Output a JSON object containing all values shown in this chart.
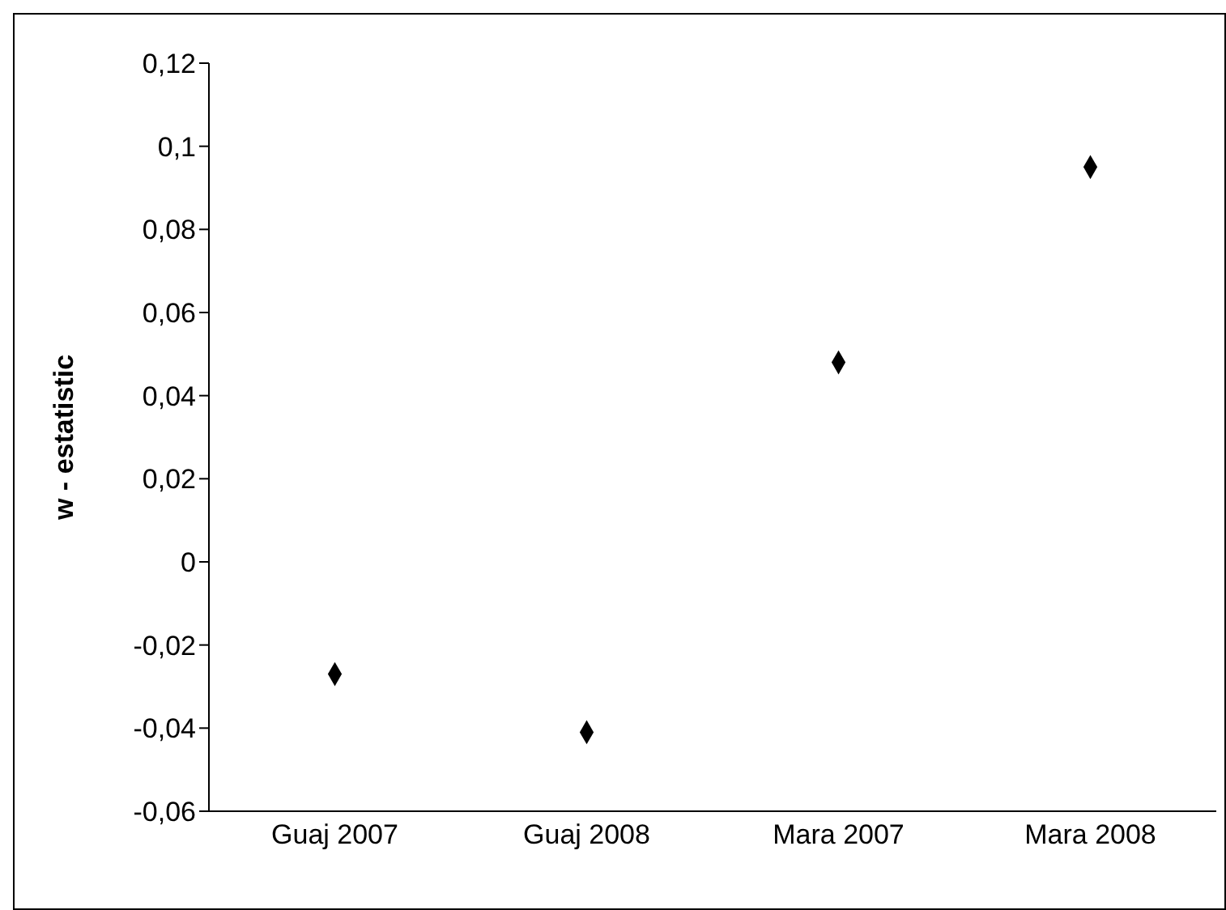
{
  "chart_data": {
    "type": "scatter",
    "ylabel": "w - estatistic",
    "categories": [
      "Guaj 2007",
      "Guaj 2008",
      "Mara 2007",
      "Mara 2008"
    ],
    "series": [
      {
        "color": "#000000",
        "values": [
          -0.027,
          -0.041,
          0.048,
          0.095
        ]
      }
    ],
    "ylim": [
      -0.06,
      0.12
    ],
    "yticks": [
      {
        "value": -0.06,
        "label": "-0,06"
      },
      {
        "value": -0.04,
        "label": "-0,04"
      },
      {
        "value": -0.02,
        "label": "-0,02"
      },
      {
        "value": 0,
        "label": "0"
      },
      {
        "value": 0.02,
        "label": "0,02"
      },
      {
        "value": 0.04,
        "label": "0,04"
      },
      {
        "value": 0.06,
        "label": "0,06"
      },
      {
        "value": 0.08,
        "label": "0,08"
      },
      {
        "value": 0.1,
        "label": "0,1"
      },
      {
        "value": 0.12,
        "label": "0,12"
      }
    ],
    "marker": "diamond",
    "grid": false,
    "legend": false
  }
}
